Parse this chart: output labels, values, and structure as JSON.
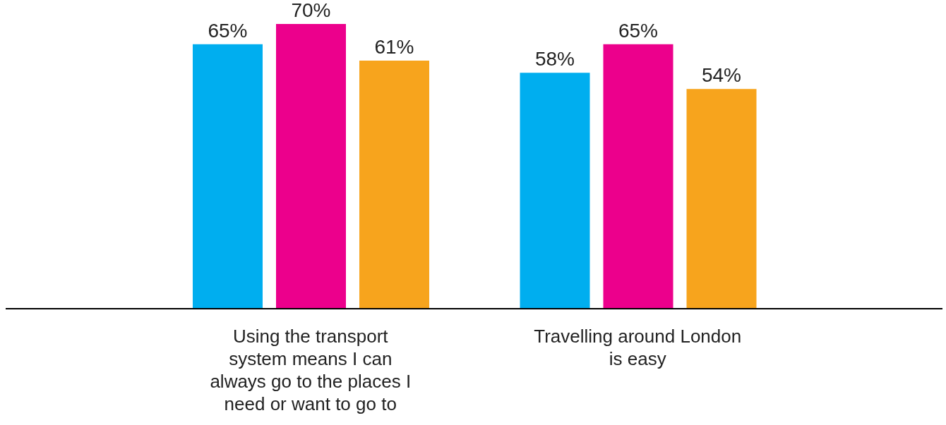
{
  "chart_data": {
    "type": "bar",
    "categories": [
      "Using the transport system means I can always go to the places I need or want to go to",
      "Travelling around London is easy"
    ],
    "series": [
      {
        "color": "#00aeef",
        "values": [
          65,
          58
        ],
        "value_labels": [
          "65%",
          "58%"
        ]
      },
      {
        "color": "#ec008c",
        "values": [
          70,
          65
        ],
        "value_labels": [
          "70%",
          "65%"
        ]
      },
      {
        "color": "#f7a41d",
        "values": [
          61,
          54
        ],
        "value_labels": [
          "61%",
          "54%"
        ]
      }
    ],
    "grid": false,
    "legend": false
  }
}
